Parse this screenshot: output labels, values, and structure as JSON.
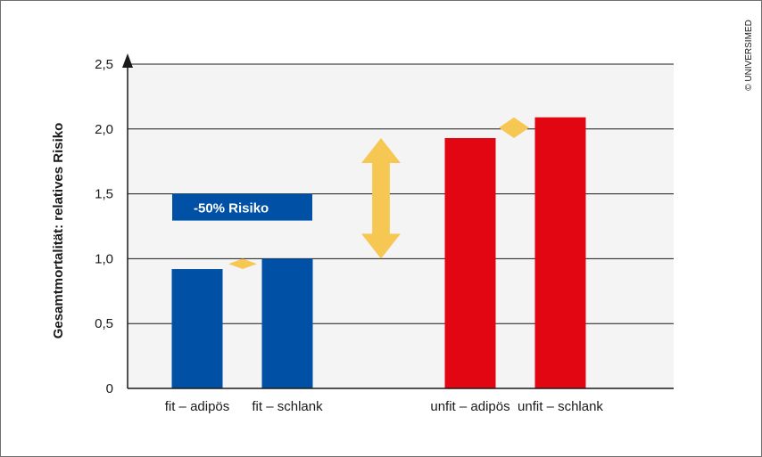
{
  "chart_data": {
    "type": "bar",
    "ylabel": "Gesamtmortalität: relatives Risiko",
    "ylim": [
      0,
      2.5
    ],
    "yticks": [
      "0",
      "0,5",
      "1,0",
      "1,5",
      "2,0",
      "2,5"
    ],
    "ytick_values": [
      0,
      0.5,
      1.0,
      1.5,
      2.0,
      2.5
    ],
    "grid": true,
    "categories": [
      "fit – adipös",
      "fit – schlank",
      "unfit – adipös",
      "unfit – schlank"
    ],
    "values": [
      0.92,
      1.0,
      1.93,
      2.09
    ],
    "colors": [
      "#0051a5",
      "#0051a5",
      "#e20613",
      "#e20613"
    ],
    "annotation": {
      "label": "-50% Risiko",
      "box_color": "#0051a5",
      "from_value": 1.0,
      "to_value": 1.5
    },
    "arrow_color": "#f7c754",
    "arrows": [
      {
        "between": [
          "fit – adipös",
          "fit – schlank"
        ],
        "from": 0.92,
        "to": 1.0
      },
      {
        "between": [
          "fit – schlank",
          "unfit – adipös"
        ],
        "from": 1.0,
        "to": 1.93
      },
      {
        "between": [
          "unfit – adipös",
          "unfit – schlank"
        ],
        "from": 1.93,
        "to": 2.09
      }
    ]
  },
  "credit": "© UNIVERSIMED"
}
